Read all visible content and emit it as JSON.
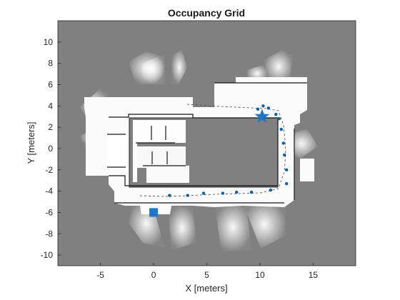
{
  "chart_data": {
    "type": "scatter",
    "title": "Occupancy Grid",
    "xlabel": "X [meters]",
    "ylabel": "Y [meters]",
    "xlim": [
      -9,
      19
    ],
    "ylim": [
      -11,
      12
    ],
    "xticks": [
      -5,
      0,
      5,
      10,
      15
    ],
    "yticks": [
      -10,
      -8,
      -6,
      -4,
      -2,
      0,
      2,
      4,
      6,
      8,
      10
    ],
    "grid": false,
    "background_color": "#808080",
    "free_space_color": "#ffffff",
    "marker_color": "#0b5fa5",
    "start_marker_color": "#1f77c8",
    "series": [
      {
        "marker": "circle",
        "x": [
          1.5,
          3.2,
          4.7,
          6.5,
          7.8,
          9.2,
          11.0,
          12.5,
          12.5,
          12.3,
          12.2,
          12.0,
          11.8,
          11.5,
          10.8,
          10.3,
          9.8
        ],
        "y": [
          -4.4,
          -4.4,
          -4.2,
          -4.2,
          -4.1,
          -4.1,
          -3.9,
          -3.3,
          -2.0,
          -0.6,
          0.5,
          1.8,
          2.8,
          3.2,
          3.8,
          4.0,
          3.7
        ]
      },
      {
        "marker": "square",
        "x": [
          0.0
        ],
        "y": [
          -6.0
        ]
      },
      {
        "marker": "star",
        "x": [
          10.2
        ],
        "y": [
          3.0
        ]
      }
    ]
  }
}
